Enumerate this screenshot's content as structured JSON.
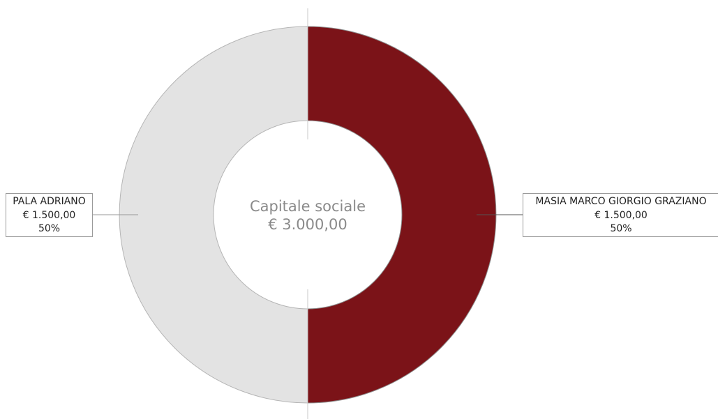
{
  "chart_data": {
    "type": "pie",
    "center_title": "Capitale sociale",
    "center_value": "€ 3.000,00",
    "slices": [
      {
        "name": "MASIA MARCO GIORGIO GRAZIANO",
        "amount_label": "€ 1.500,00",
        "percent_label": "50%",
        "value": 1500,
        "color": "#7b1318"
      },
      {
        "name": "PALA ADRIANO",
        "amount_label": "€ 1.500,00",
        "percent_label": "50%",
        "value": 1500,
        "color": "#e3e3e3"
      }
    ]
  }
}
